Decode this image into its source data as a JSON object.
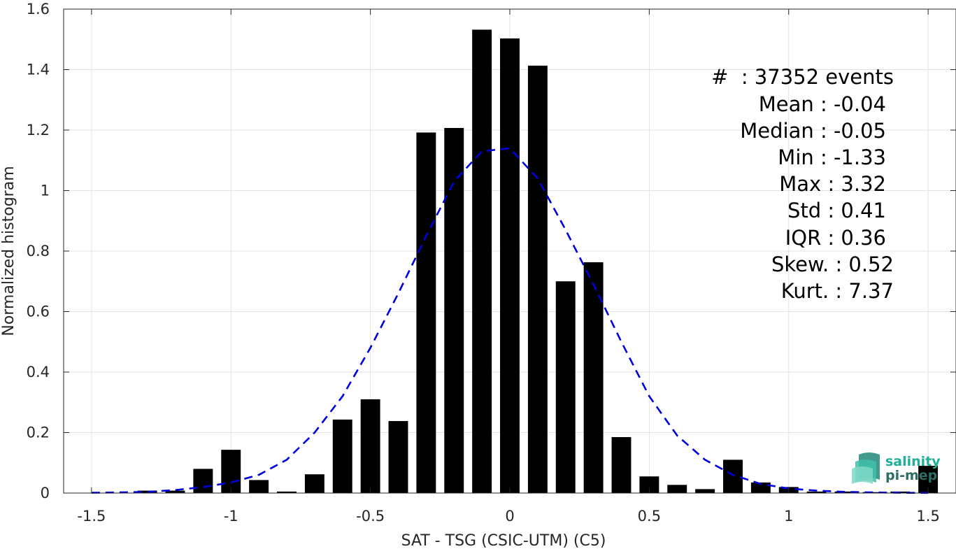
{
  "chart_data": {
    "type": "bar",
    "xlabel": "SAT - TSG (CSIC-UTM) (C5)",
    "ylabel": "Normalized histogram",
    "xlim": [
      -1.6,
      1.6
    ],
    "ylim": [
      0,
      1.6
    ],
    "xticks": [
      -1.5,
      -1,
      -0.5,
      0,
      0.5,
      1,
      1.5
    ],
    "xtick_labels": [
      "-1.5",
      "-1",
      "-0.5",
      "0",
      "0.5",
      "1",
      "1.5"
    ],
    "yticks": [
      0,
      0.2,
      0.4,
      0.6,
      0.8,
      1,
      1.2,
      1.4,
      1.6
    ],
    "ytick_labels": [
      "0",
      "0.2",
      "0.4",
      "0.6",
      "0.8",
      "1",
      "1.2",
      "1.4",
      "1.6"
    ],
    "grid": true,
    "bar_color": "#000000",
    "bar_width": 0.07,
    "bars": {
      "x": [
        -1.3,
        -1.2,
        -1.1,
        -1.0,
        -0.9,
        -0.8,
        -0.7,
        -0.6,
        -0.5,
        -0.4,
        -0.3,
        -0.2,
        -0.1,
        0.0,
        0.1,
        0.2,
        0.3,
        0.4,
        0.5,
        0.6,
        0.7,
        0.8,
        0.9,
        1.0,
        1.1,
        1.2,
        1.3,
        1.4,
        1.5
      ],
      "values": [
        0.008,
        0.008,
        0.08,
        0.143,
        0.043,
        0.005,
        0.062,
        0.243,
        0.31,
        0.238,
        1.192,
        1.207,
        1.532,
        1.503,
        1.413,
        0.7,
        0.763,
        0.185,
        0.055,
        0.027,
        0.013,
        0.11,
        0.035,
        0.02,
        0.005,
        0.005,
        0.003,
        0.005,
        0.09
      ]
    },
    "fit_curve": {
      "style": "dashed",
      "color": "#0000dd",
      "x": [
        -1.5,
        -1.4,
        -1.3,
        -1.2,
        -1.1,
        -1.0,
        -0.9,
        -0.8,
        -0.7,
        -0.6,
        -0.5,
        -0.4,
        -0.3,
        -0.2,
        -0.1,
        0.0,
        0.1,
        0.2,
        0.3,
        0.4,
        0.5,
        0.6,
        0.7,
        0.8,
        0.9,
        1.0,
        1.1,
        1.2,
        1.3,
        1.4,
        1.5
      ],
      "y": [
        0.001,
        0.002,
        0.004,
        0.01,
        0.02,
        0.035,
        0.06,
        0.11,
        0.2,
        0.32,
        0.48,
        0.66,
        0.85,
        1.03,
        1.13,
        1.14,
        1.04,
        0.87,
        0.69,
        0.5,
        0.32,
        0.19,
        0.11,
        0.06,
        0.03,
        0.015,
        0.008,
        0.004,
        0.002,
        0.001,
        0.0005
      ]
    }
  },
  "stats": [
    {
      "label": "#  : 37352 events"
    },
    {
      "label": "Mean : -0.04"
    },
    {
      "label": "Median : -0.05"
    },
    {
      "label": "Min : -1.33"
    },
    {
      "label": "Max : 3.32"
    },
    {
      "label": "Std : 0.41"
    },
    {
      "label": "IQR : 0.36"
    },
    {
      "label": "Skew. : 0.52"
    },
    {
      "label": "Kurt. : 7.37"
    }
  ],
  "logo": {
    "line1": "salinity",
    "line2": "pi-mep",
    "colors": {
      "primary": "#1fae96",
      "dark": "#2c6e64"
    }
  }
}
